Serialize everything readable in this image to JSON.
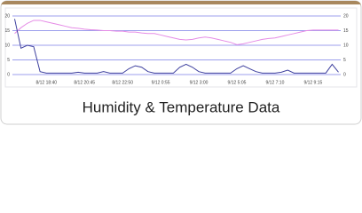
{
  "chart_data": {
    "type": "line",
    "title": "Humidity & Temperature Data",
    "categories": [
      null,
      null,
      null,
      null,
      null,
      "8/12 18:40",
      null,
      null,
      null,
      null,
      null,
      "8/12 20:45",
      null,
      null,
      null,
      null,
      null,
      "8/12 22:50",
      null,
      null,
      null,
      null,
      null,
      "9/12 0:55",
      null,
      null,
      null,
      null,
      null,
      "9/12 3:00",
      null,
      null,
      null,
      null,
      null,
      "9/12 5:05",
      null,
      null,
      null,
      null,
      null,
      "9/12 7:10",
      null,
      null,
      null,
      null,
      null,
      "9/12 9:15",
      null,
      null,
      null,
      null
    ],
    "series": [
      {
        "color": "#e58be6",
        "axis": "y2",
        "values": [
          14,
          16,
          17.5,
          18.5,
          18.5,
          18,
          17.5,
          17,
          16.5,
          16,
          15.8,
          15.5,
          15.3,
          15.2,
          15,
          15,
          14.8,
          14.8,
          14.5,
          14.5,
          14.2,
          14,
          14,
          13.5,
          13,
          12.5,
          12,
          11.8,
          12,
          12.5,
          12.8,
          12.5,
          12,
          11.5,
          11,
          10.2,
          10.5,
          11,
          11.5,
          12,
          12.3,
          12.5,
          13,
          13.5,
          14,
          14.5,
          15,
          15.2,
          15.2,
          15.2,
          15.2,
          15.2
        ]
      },
      {
        "color": "#3d3f9e",
        "values": [
          19,
          9,
          10,
          9.5,
          1,
          0.5,
          0.5,
          0.5,
          0.5,
          0.5,
          0.8,
          0.5,
          0.5,
          0.5,
          1,
          0.5,
          0.5,
          0.5,
          2,
          3,
          2.5,
          1,
          0.5,
          0.5,
          0.5,
          0.5,
          2.5,
          3.5,
          2.5,
          1,
          0.5,
          0.5,
          0.5,
          0.5,
          0.5,
          2,
          3,
          2,
          1,
          0.5,
          0.5,
          0.5,
          0.8,
          1.5,
          0.5,
          0.5,
          0.5,
          0.5,
          0.5,
          0.5,
          3.5,
          0.8
        ]
      }
    ],
    "ylim": [
      0,
      20
    ],
    "yticks": [
      0,
      5,
      10,
      15,
      20
    ],
    "y2lim": [
      0,
      20
    ],
    "y2ticks": [
      0,
      5,
      10,
      15,
      20
    ],
    "grid": true
  }
}
